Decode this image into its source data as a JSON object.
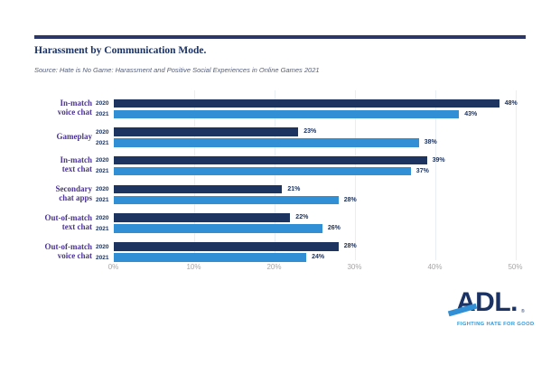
{
  "header": {
    "title": "Harassment by Communication Mode.",
    "source": "Source: Hate is No Game: Harassment and Positive Social Experiences in Online Games 2021"
  },
  "chart_data": {
    "type": "bar",
    "orientation": "horizontal",
    "title": "Harassment by Communication Mode.",
    "categories": [
      "In-match voice chat",
      "Gameplay",
      "In-match text chat",
      "Secondary chat apps",
      "Out-of-match text chat",
      "Out-of-match voice chat"
    ],
    "category_lines": [
      [
        "In-match",
        "voice chat"
      ],
      [
        "Gameplay"
      ],
      [
        "In-match",
        "text chat"
      ],
      [
        "Secondary",
        "chat apps"
      ],
      [
        "Out-of-match",
        "text chat"
      ],
      [
        "Out-of-match",
        "voice chat"
      ]
    ],
    "series": [
      {
        "name": "2020",
        "color": "#1d3461",
        "values": [
          48,
          23,
          39,
          21,
          22,
          28
        ]
      },
      {
        "name": "2021",
        "color": "#3190d5",
        "values": [
          43,
          38,
          37,
          28,
          26,
          24
        ]
      }
    ],
    "value_suffix": "%",
    "xlim": [
      0,
      50
    ],
    "x_ticks": [
      "0%",
      "10%",
      "20%",
      "30%",
      "40%",
      "50%"
    ],
    "grid": true,
    "legend_position": "inline-year-labels"
  },
  "logo": {
    "text": "ADL.",
    "registered": "®",
    "tagline": "FIGHTING HATE FOR GOOD"
  },
  "colors": {
    "navy": "#1d3461",
    "blue": "#3190d5",
    "purple": "#4b3394",
    "rule": "#2b3767",
    "axis_gray": "#a8a6a6",
    "gridline": "#e9eef5"
  }
}
